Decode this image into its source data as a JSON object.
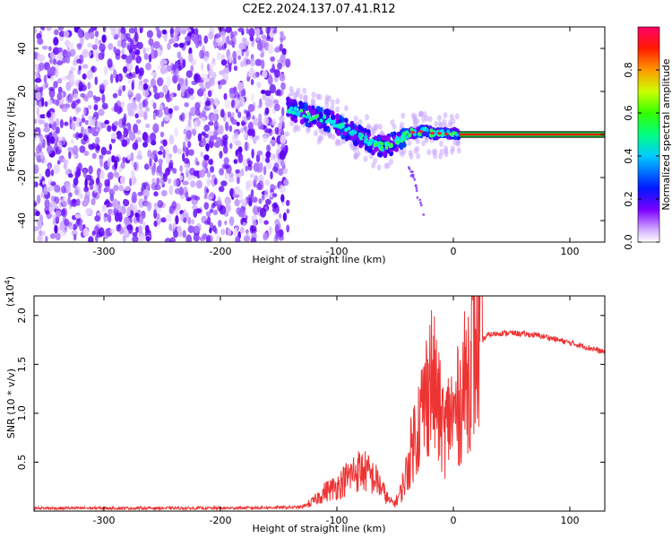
{
  "title": "C2E2.2024.137.07.41.R12",
  "chart_data": [
    {
      "type": "heatmap",
      "xlabel": "Height of straight line (km)",
      "ylabel": "Frequency (Hz)",
      "xlim": [
        -360,
        130
      ],
      "ylim": [
        -50,
        50
      ],
      "xticks": [
        -300,
        -200,
        -100,
        0,
        100
      ],
      "yticks": [
        -40,
        -20,
        0,
        20,
        40
      ],
      "noise_region_x": [
        -360,
        -142
      ],
      "signal_track": {
        "x": [
          -142,
          -130,
          -120,
          -110,
          -100,
          -90,
          -80,
          -70,
          -60,
          -55,
          -50,
          -45,
          -40,
          -35,
          -30,
          -25,
          -20,
          -15,
          -10,
          -5,
          0,
          5
        ],
        "y": [
          12,
          10,
          8,
          7,
          5,
          2,
          -1,
          -4,
          -6,
          -5,
          -3,
          -2,
          0,
          1,
          1,
          2,
          1,
          0,
          1,
          0,
          1,
          0
        ]
      },
      "constant_line": {
        "x": [
          5,
          130
        ],
        "y": 0
      },
      "colorbar": {
        "label": "Normalized spectral amplitude",
        "range": [
          0.0,
          1.0
        ],
        "ticks": [
          "0.0",
          "0.2",
          "0.4",
          "0.6",
          "0.8"
        ],
        "tick_values": [
          0.0,
          0.2,
          0.4,
          0.6,
          0.8
        ]
      }
    },
    {
      "type": "line",
      "xlabel": "Height of straight line (km)",
      "ylabel": "SNR (10 * v/v)",
      "multiplier": "(x10",
      "multiplier_exp": "4",
      "multiplier_close": ")",
      "xlim": [
        -360,
        130
      ],
      "ylim": [
        0,
        22000
      ],
      "xticks": [
        -300,
        -200,
        -100,
        0,
        100
      ],
      "yticks": [
        5000,
        10000,
        15000,
        20000
      ],
      "ytick_labels": [
        "0.5",
        "1.0",
        "1.5",
        "2.0"
      ],
      "color": "#ee3333",
      "series": [
        {
          "name": "SNR",
          "x": [
            -360,
            -300,
            -200,
            -130,
            -120,
            -110,
            -100,
            -95,
            -90,
            -85,
            -80,
            -75,
            -70,
            -65,
            -60,
            -55,
            -50,
            -45,
            -40,
            -35,
            -30,
            -25,
            -20,
            -15,
            -12,
            -10,
            -8,
            -5,
            -3,
            0,
            5,
            10,
            15,
            20,
            25,
            30,
            40,
            50,
            60,
            70,
            80,
            90,
            100,
            110,
            120,
            130
          ],
          "y": [
            300,
            300,
            300,
            400,
            1000,
            2000,
            2500,
            3000,
            3500,
            4000,
            4200,
            4000,
            3500,
            3000,
            2000,
            1000,
            800,
            2000,
            4000,
            7000,
            9000,
            11000,
            14000,
            12000,
            10000,
            9000,
            8000,
            9000,
            10000,
            9500,
            11000,
            13000,
            15500,
            17000,
            17500,
            18000,
            18200,
            18200,
            18100,
            18000,
            17800,
            17500,
            17200,
            16900,
            16600,
            16200
          ]
        }
      ]
    }
  ]
}
